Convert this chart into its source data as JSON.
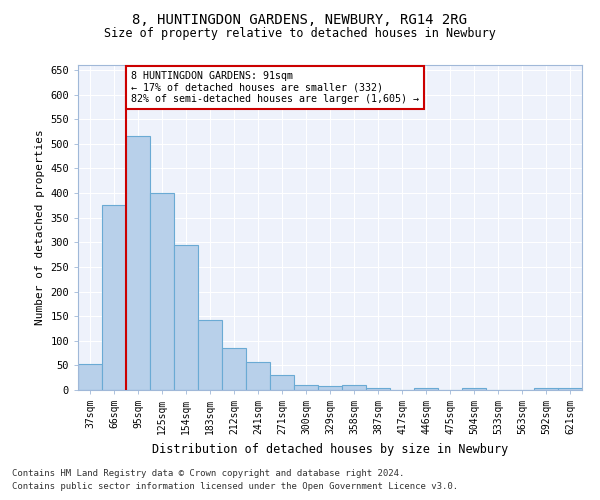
{
  "title1": "8, HUNTINGDON GARDENS, NEWBURY, RG14 2RG",
  "title2": "Size of property relative to detached houses in Newbury",
  "xlabel": "Distribution of detached houses by size in Newbury",
  "ylabel": "Number of detached properties",
  "categories": [
    "37sqm",
    "66sqm",
    "95sqm",
    "125sqm",
    "154sqm",
    "183sqm",
    "212sqm",
    "241sqm",
    "271sqm",
    "300sqm",
    "329sqm",
    "358sqm",
    "387sqm",
    "417sqm",
    "446sqm",
    "475sqm",
    "504sqm",
    "533sqm",
    "563sqm",
    "592sqm",
    "621sqm"
  ],
  "values": [
    52,
    375,
    515,
    400,
    295,
    143,
    85,
    57,
    30,
    11,
    8,
    11,
    5,
    0,
    5,
    0,
    5,
    0,
    0,
    5,
    5
  ],
  "bar_color": "#b8d0ea",
  "bar_edge_color": "#6aaad4",
  "bar_linewidth": 0.8,
  "red_line_x": 1.5,
  "annotation_text": "8 HUNTINGDON GARDENS: 91sqm\n← 17% of detached houses are smaller (332)\n82% of semi-detached houses are larger (1,605) →",
  "annotation_box_color": "#ffffff",
  "annotation_box_edge_color": "#cc0000",
  "red_line_color": "#cc0000",
  "ylim": [
    0,
    660
  ],
  "yticks": [
    0,
    50,
    100,
    150,
    200,
    250,
    300,
    350,
    400,
    450,
    500,
    550,
    600,
    650
  ],
  "bg_color": "#eef2fb",
  "grid_color": "#ffffff",
  "footer1": "Contains HM Land Registry data © Crown copyright and database right 2024.",
  "footer2": "Contains public sector information licensed under the Open Government Licence v3.0."
}
